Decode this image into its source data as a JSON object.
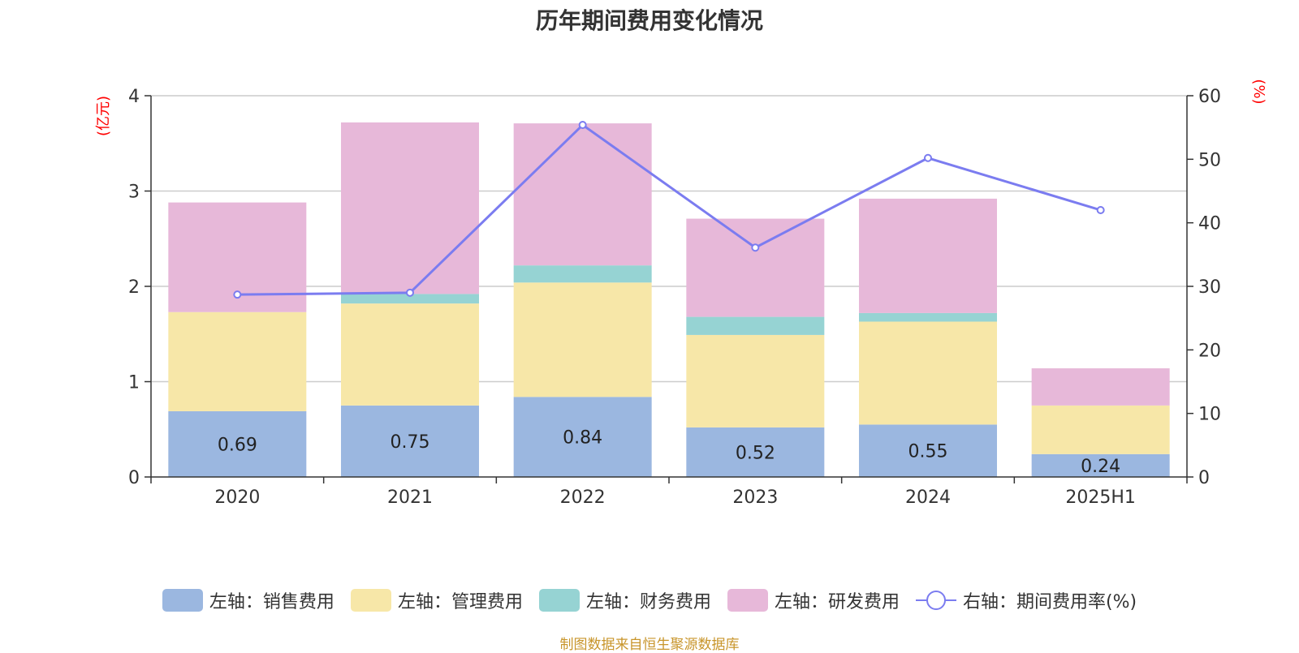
{
  "chart_data": {
    "type": "bar",
    "title": "历年期间费用变化情况",
    "categories": [
      "2020",
      "2021",
      "2022",
      "2023",
      "2024",
      "2025H1"
    ],
    "y_left": {
      "unit_label": "(亿元)",
      "ylim": [
        0,
        4
      ],
      "ticks": [
        0,
        1,
        2,
        3,
        4
      ]
    },
    "y_right": {
      "unit_label": "(%)",
      "ylim": [
        0,
        60
      ],
      "ticks": [
        0,
        10,
        20,
        30,
        40,
        50,
        60
      ]
    },
    "stacked": true,
    "grid": true,
    "legend_position": "bottom",
    "series": [
      {
        "name": "左轴：销售费用",
        "type": "bar",
        "axis": "left",
        "color": "#9bb7e0",
        "values": [
          0.69,
          0.75,
          0.84,
          0.52,
          0.55,
          0.24
        ],
        "show_labels": true
      },
      {
        "name": "左轴：管理费用",
        "type": "bar",
        "axis": "left",
        "color": "#f7e7a8",
        "values": [
          1.04,
          1.07,
          1.2,
          0.97,
          1.08,
          0.51
        ],
        "show_labels": false
      },
      {
        "name": "左轴：财务费用",
        "type": "bar",
        "axis": "left",
        "color": "#96d3d3",
        "values": [
          0.0,
          0.1,
          0.18,
          0.19,
          0.09,
          0.0
        ],
        "show_labels": false
      },
      {
        "name": "左轴：研发费用",
        "type": "bar",
        "axis": "left",
        "color": "#e7b8d9",
        "values": [
          1.15,
          1.8,
          1.49,
          1.03,
          1.2,
          0.39
        ],
        "show_labels": false
      },
      {
        "name": "右轴：期间费用率(%)",
        "type": "line",
        "axis": "right",
        "color": "#7b7cf0",
        "values": [
          28.7,
          29.0,
          55.4,
          36.1,
          50.2,
          42.0
        ]
      }
    ],
    "axis_label_color": "#ff0000",
    "source_note": "制图数据来自恒生聚源数据库"
  }
}
